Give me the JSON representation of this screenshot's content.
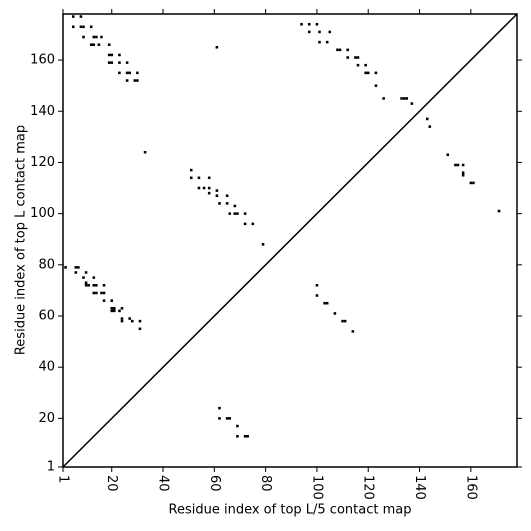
{
  "chart_data": {
    "type": "scatter",
    "xlabel": "Residue index of top L/5 contact map",
    "ylabel": "Residue index of top L contact map",
    "color": "#000000",
    "xlim": [
      1,
      178
    ],
    "ylim": [
      1,
      178
    ],
    "xticks": [
      1,
      20,
      40,
      60,
      80,
      100,
      120,
      140,
      160
    ],
    "yticks": [
      1,
      20,
      40,
      60,
      80,
      100,
      120,
      140,
      160
    ],
    "diagonal": true,
    "x": [
      5,
      8,
      5,
      8,
      9,
      12,
      9,
      13,
      14,
      16,
      12,
      13,
      15,
      19,
      19,
      20,
      23,
      19,
      20,
      23,
      26,
      23,
      26,
      27,
      30,
      26,
      29,
      30,
      2,
      6,
      7,
      6,
      10,
      9,
      10,
      13,
      10,
      11,
      13,
      14,
      17,
      13,
      14,
      16,
      17,
      17,
      20,
      20,
      21,
      24,
      20,
      21,
      23,
      24,
      24,
      27,
      28,
      31,
      31,
      51,
      51,
      54,
      58,
      54,
      56,
      58,
      58,
      61,
      61,
      65,
      62,
      65,
      68,
      66,
      68,
      69,
      72,
      72,
      75,
      79,
      62,
      62,
      65,
      66,
      69,
      69,
      72,
      73,
      94,
      97,
      100,
      97,
      101,
      105,
      101,
      104,
      108,
      109,
      112,
      112,
      115,
      116,
      116,
      119,
      119,
      120,
      123,
      123,
      126,
      133,
      134,
      135,
      137,
      100,
      100,
      103,
      104,
      107,
      110,
      111,
      114,
      143,
      144,
      151,
      154,
      155,
      157,
      157,
      157,
      160,
      161,
      171,
      61,
      33
    ],
    "y": [
      177,
      177,
      173,
      173,
      173,
      173,
      169,
      169,
      169,
      169,
      166,
      166,
      166,
      166,
      162,
      162,
      162,
      159,
      159,
      159,
      159,
      155,
      155,
      155,
      155,
      152,
      152,
      152,
      79,
      79,
      79,
      77,
      77,
      75,
      73,
      75,
      72,
      72,
      72,
      72,
      72,
      69,
      69,
      69,
      69,
      66,
      66,
      63,
      63,
      63,
      62,
      62,
      62,
      59,
      58,
      59,
      58,
      58,
      55,
      117,
      114,
      114,
      114,
      110,
      110,
      110,
      108,
      109,
      107,
      107,
      104,
      104,
      103,
      100,
      100,
      100,
      100,
      96,
      96,
      88,
      24,
      20,
      20,
      20,
      17,
      13,
      13,
      13,
      174,
      174,
      174,
      171,
      171,
      171,
      167,
      167,
      164,
      164,
      164,
      161,
      161,
      161,
      158,
      158,
      155,
      155,
      155,
      150,
      145,
      145,
      145,
      145,
      143,
      72,
      68,
      65,
      65,
      61,
      58,
      58,
      54,
      137,
      134,
      123,
      119,
      119,
      119,
      116,
      115,
      112,
      112,
      101,
      165,
      124
    ]
  }
}
